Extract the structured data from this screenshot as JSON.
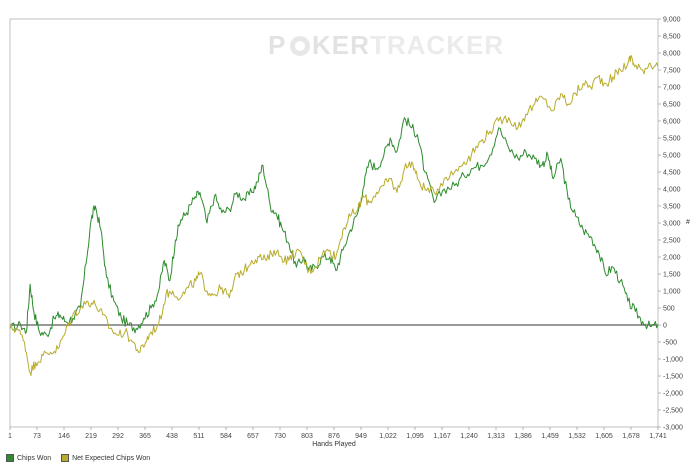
{
  "watermark": {
    "part1": "P",
    "part2": "KER",
    "part3": "TRACKER"
  },
  "legend": {
    "items": [
      {
        "label": "Chips Won",
        "color": "#2e8b2e"
      },
      {
        "label": "Net Expected Chips Won",
        "color": "#b8ac2c"
      }
    ]
  },
  "chart_data": {
    "type": "line",
    "title": "",
    "xlabel": "Hands Played",
    "ylabel": "#",
    "xlim": [
      1,
      1741
    ],
    "ylim": [
      -3000,
      9000
    ],
    "x_ticks": [
      "1",
      "73",
      "146",
      "219",
      "292",
      "365",
      "438",
      "511",
      "584",
      "657",
      "730",
      "803",
      "876",
      "949",
      "1,022",
      "1,095",
      "1,167",
      "1,240",
      "1,313",
      "1,386",
      "1,459",
      "1,532",
      "1,605",
      "1,678",
      "1,741"
    ],
    "y_ticks": [
      "9,000",
      "8,500",
      "8,000",
      "7,500",
      "7,000",
      "6,500",
      "6,000",
      "5,500",
      "5,000",
      "4,500",
      "4,000",
      "3,500",
      "3,000",
      "2,500",
      "2,000",
      "1,500",
      "1,000",
      "500",
      "0",
      "-500",
      "-1,000",
      "-1,500",
      "-2,000",
      "-2,500",
      "-3,000"
    ],
    "grid": true,
    "legend_position": "bottom-left",
    "series": [
      {
        "name": "Chips Won",
        "color": "#2e8b2e",
        "x": [
          1,
          30,
          45,
          55,
          65,
          80,
          100,
          120,
          135,
          150,
          170,
          190,
          205,
          219,
          230,
          245,
          260,
          280,
          300,
          320,
          340,
          360,
          380,
          400,
          415,
          430,
          445,
          460,
          475,
          495,
          511,
          530,
          550,
          570,
          590,
          610,
          630,
          650,
          665,
          680,
          700,
          715,
          730,
          750,
          770,
          790,
          803,
          820,
          840,
          860,
          876,
          895,
          915,
          935,
          949,
          965,
          985,
          1005,
          1022,
          1040,
          1060,
          1080,
          1095,
          1115,
          1140,
          1167,
          1195,
          1220,
          1240,
          1265,
          1290,
          1313,
          1340,
          1365,
          1386,
          1410,
          1430,
          1445,
          1459,
          1480,
          1500,
          1520,
          1540,
          1560,
          1580,
          1600,
          1620,
          1640,
          1660,
          1680,
          1700,
          1720,
          1741
        ],
        "y": [
          -100,
          0,
          -200,
          1200,
          400,
          -200,
          -300,
          200,
          300,
          100,
          200,
          500,
          1800,
          3100,
          3500,
          2800,
          1400,
          700,
          200,
          0,
          -100,
          200,
          500,
          1000,
          1900,
          1300,
          2500,
          3100,
          3300,
          3700,
          3900,
          3000,
          3800,
          3300,
          3400,
          3900,
          3700,
          3900,
          4200,
          4700,
          3500,
          3300,
          2900,
          2400,
          1700,
          2000,
          1600,
          1700,
          2000,
          2000,
          1600,
          2200,
          2800,
          3300,
          4000,
          4800,
          4600,
          5000,
          5500,
          5100,
          6100,
          5800,
          5600,
          4500,
          3600,
          4000,
          4100,
          4400,
          4600,
          4700,
          5000,
          5800,
          5200,
          4900,
          5100,
          4900,
          4700,
          5000,
          4300,
          4900,
          3700,
          3200,
          2800,
          2600,
          2200,
          1500,
          1700,
          1300,
          700,
          400,
          100,
          -50,
          0
        ]
      },
      {
        "name": "Net Expected Chips Won",
        "color": "#b8ac2c",
        "x": [
          1,
          20,
          40,
          55,
          70,
          90,
          110,
          130,
          150,
          170,
          190,
          210,
          230,
          250,
          270,
          290,
          310,
          330,
          350,
          365,
          380,
          400,
          420,
          438,
          460,
          480,
          500,
          511,
          530,
          550,
          570,
          590,
          610,
          630,
          650,
          670,
          690,
          710,
          730,
          750,
          770,
          790,
          803,
          820,
          840,
          860,
          876,
          895,
          915,
          935,
          949,
          965,
          985,
          1005,
          1022,
          1040,
          1060,
          1080,
          1095,
          1115,
          1140,
          1167,
          1195,
          1220,
          1240,
          1265,
          1290,
          1313,
          1340,
          1365,
          1386,
          1410,
          1430,
          1459,
          1480,
          1500,
          1520,
          1540,
          1560,
          1580,
          1600,
          1620,
          1640,
          1660,
          1670,
          1678,
          1700,
          1720,
          1741
        ],
        "y": [
          -100,
          -100,
          -500,
          -1400,
          -1100,
          -900,
          -800,
          -700,
          -200,
          300,
          500,
          700,
          600,
          300,
          -100,
          -300,
          -200,
          -500,
          -800,
          -500,
          -200,
          0,
          900,
          1000,
          800,
          1100,
          1300,
          1500,
          1000,
          900,
          1100,
          800,
          1500,
          1600,
          1900,
          2000,
          1900,
          2200,
          2000,
          1900,
          2200,
          1900,
          1600,
          1700,
          2100,
          2200,
          2000,
          2800,
          3200,
          3400,
          3800,
          3600,
          3900,
          4100,
          4300,
          3900,
          4600,
          4800,
          4300,
          4000,
          3900,
          4300,
          4500,
          4800,
          5000,
          5400,
          5700,
          6000,
          6100,
          5800,
          6200,
          6500,
          6700,
          6300,
          6800,
          6500,
          6800,
          7100,
          7000,
          7300,
          7100,
          7300,
          7500,
          7700,
          7900,
          7600,
          7500,
          7700,
          7600
        ]
      }
    ]
  }
}
